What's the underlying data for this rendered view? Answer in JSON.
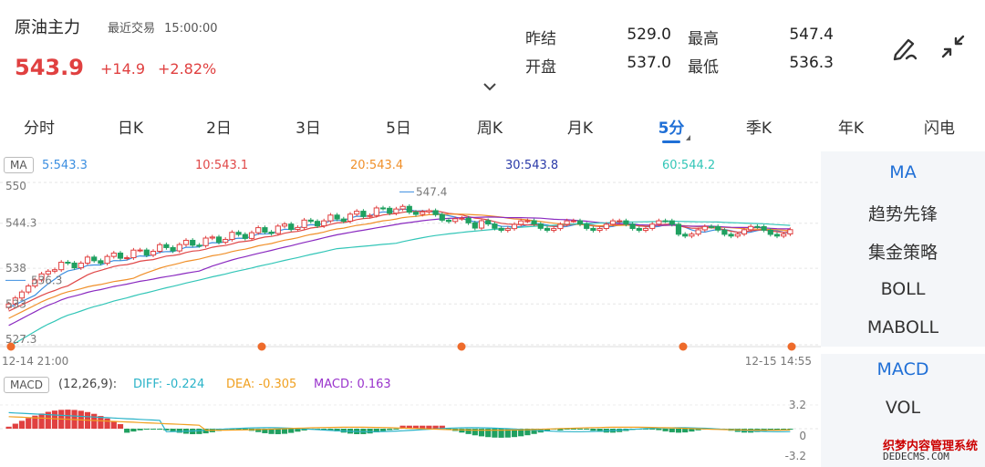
{
  "header": {
    "symbol": "原油主力",
    "last_trade_label": "最近交易",
    "last_trade_time": "15:00:00",
    "price": "543.9",
    "change": "+14.9",
    "change_pct": "+2.82%",
    "stats": {
      "prev_settle_label": "昨结",
      "prev_settle": "529.0",
      "open_label": "开盘",
      "open": "537.0",
      "high_label": "最高",
      "high": "547.4",
      "low_label": "最低",
      "low": "536.3"
    },
    "icons": [
      "draw-icon",
      "collapse-icon",
      "chevron-down-icon"
    ]
  },
  "tabs": [
    {
      "label": "分时"
    },
    {
      "label": "日K"
    },
    {
      "label": "2日"
    },
    {
      "label": "3日"
    },
    {
      "label": "5日"
    },
    {
      "label": "周K"
    },
    {
      "label": "月K"
    },
    {
      "label": "5分",
      "active": true
    },
    {
      "label": "季K"
    },
    {
      "label": "年K"
    },
    {
      "label": "闪电"
    }
  ],
  "ma_legend": {
    "badge": "MA",
    "items": [
      {
        "label": "5:543.3",
        "color": "#3b8ee0"
      },
      {
        "label": "10:543.1",
        "color": "#e04848"
      },
      {
        "label": "20:543.4",
        "color": "#f0902a"
      },
      {
        "label": "30:543.8",
        "color": "#2a3aa8"
      },
      {
        "label": "60:544.2",
        "color": "#33c6b8"
      }
    ]
  },
  "price_axis": {
    "labels": [
      "550",
      "544.3",
      "538",
      "536.3",
      "533",
      "527.3"
    ],
    "max_label": "547.4",
    "time_start": "12-14 21:00",
    "time_end": "12-15 14:55"
  },
  "macd_legend": {
    "badge": "MACD",
    "params": "(12,26,9):",
    "diff": "DIFF: -0.224",
    "dea": "DEA: -0.305",
    "macd": "MACD: 0.163",
    "diff_color": "#2ab3c8",
    "dea_color": "#f0a020",
    "macd_color": "#9933cc",
    "axis": [
      "3.2",
      "0",
      "-3.2"
    ]
  },
  "right_panel": {
    "indicators_main": [
      "MA",
      "趋势先锋",
      "集金策略",
      "BOLL",
      "MABOLL"
    ],
    "indicators_sub": [
      "MACD",
      "VOL"
    ]
  },
  "watermark": {
    "line1": "织梦内容管理系统",
    "line2": "DEDECMS.COM"
  },
  "colors": {
    "up": "#e04040",
    "down": "#20a060",
    "accent": "#1f6fd6"
  }
}
